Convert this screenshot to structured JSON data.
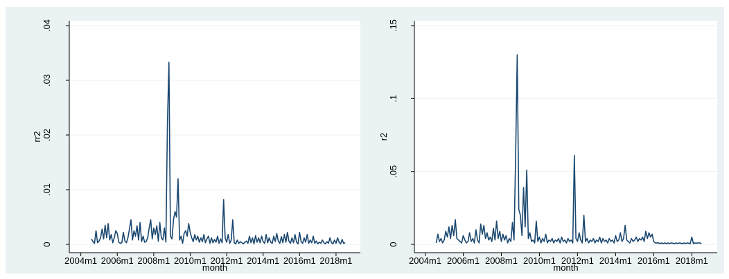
{
  "chart_data": [
    {
      "type": "line",
      "y_label": "rr2",
      "x_label": "month",
      "x": [
        535,
        536,
        537,
        538,
        539,
        540,
        541,
        542,
        543,
        544,
        545,
        546,
        547,
        548,
        549,
        550,
        551,
        552,
        553,
        554,
        555,
        556,
        557,
        558,
        559,
        560,
        561,
        562,
        563,
        564,
        565,
        566,
        567,
        568,
        569,
        570,
        571,
        572,
        573,
        574,
        575,
        576,
        577,
        578,
        579,
        580,
        581,
        582,
        583,
        584,
        585,
        586,
        587,
        588,
        589,
        590,
        591,
        592,
        593,
        594,
        595,
        596,
        597,
        598,
        599,
        600,
        601,
        602,
        603,
        604,
        605,
        606,
        607,
        608,
        609,
        610,
        611,
        612,
        613,
        614,
        615,
        616,
        617,
        618,
        619,
        620,
        621,
        622,
        623,
        624,
        625,
        626,
        627,
        628,
        629,
        630,
        631,
        632,
        633,
        634,
        635,
        636,
        637,
        638,
        639,
        640,
        641,
        642,
        643,
        644,
        645,
        646,
        647,
        648,
        649,
        650,
        651,
        652,
        653,
        654,
        655,
        656,
        657,
        658,
        659,
        660,
        661,
        662,
        663,
        664,
        665,
        666,
        667,
        668,
        669,
        670,
        671,
        672,
        673,
        674,
        675,
        676,
        677,
        678,
        679,
        680,
        681,
        682,
        683,
        684,
        685,
        686,
        687,
        688,
        689,
        690,
        691,
        692,
        693,
        694,
        695,
        696,
        697,
        698,
        699,
        700,
        701,
        702
      ],
      "series": [
        {
          "name": "rr2",
          "color": "#1a476f",
          "values": [
            0.001,
            0.0005,
            0.0002,
            0.0025,
            0.0003,
            0.0006,
            0.0012,
            0.0028,
            0.001,
            0.0035,
            0.0012,
            0.0038,
            0.0008,
            0.0018,
            0.0003,
            0.0012,
            0.0025,
            0.002,
            0.0004,
            0.0002,
            0.0003,
            0.0022,
            0.0006,
            0.0003,
            0.0012,
            0.0028,
            0.0045,
            0.0008,
            0.0025,
            0.0015,
            0.0034,
            0.0008,
            0.004,
            0.0005,
            0.0015,
            0.0004,
            0.0005,
            0.0012,
            0.003,
            0.0045,
            0.001,
            0.003,
            0.0018,
            0.0034,
            0.0006,
            0.004,
            0.0012,
            0.0008,
            0.003,
            0.0004,
            0.022,
            0.0333,
            0.0015,
            0.001,
            0.0045,
            0.006,
            0.005,
            0.012,
            0.0008,
            0.0015,
            0.0002,
            0.002,
            0.0025,
            0.0015,
            0.0038,
            0.0022,
            0.0012,
            0.0005,
            0.0018,
            0.0008,
            0.0015,
            0.0004,
            0.0012,
            0.0005,
            0.0018,
            0.0003,
            0.001,
            0.0015,
            0.0002,
            0.0012,
            0.0003,
            0.0009,
            0.0004,
            0.0015,
            0.0002,
            0.001,
            0.0003,
            0.0082,
            0.0012,
            0.0004,
            0.0018,
            0.0002,
            0.0008,
            0.0045,
            0.0003,
            0.0001,
            0.0008,
            0.0002,
            0.0005,
            0.0003,
            0.0001,
            0.0004,
            0.0006,
            0.0002,
            0.0015,
            0.0003,
            0.0012,
            0.0001,
            0.0016,
            0.0004,
            0.0012,
            0.0003,
            0.0015,
            0.0005,
            0.0002,
            0.0018,
            0.0003,
            0.0012,
            0.0004,
            0.0002,
            0.0015,
            0.0005,
            0.002,
            0.0006,
            0.0002,
            0.0014,
            0.0003,
            0.0018,
            0.0004,
            0.0022,
            0.0006,
            0.0002,
            0.0012,
            0.0003,
            0.0018,
            0.0004,
            0.0001,
            0.0022,
            0.0005,
            0.0002,
            0.0012,
            0.0004,
            0.0018,
            0.0002,
            0.0008,
            0.0003,
            0.0015,
            0.0002,
            0.0006,
            0.0001,
            0.0004,
            0.0002,
            0.0008,
            0.0003,
            0.0001,
            0.0005,
            0.0002,
            0.0012,
            0.0003,
            0.0001,
            0.0008,
            0.0002,
            0.0012,
            0.0004,
            0.0001,
            0.0009,
            0.0002,
            0.0003
          ]
        }
      ],
      "xlim": [
        509,
        712
      ],
      "ylim": [
        0,
        0.04
      ],
      "xticks": [
        {
          "value": 528,
          "label": "2004m1"
        },
        {
          "value": 552,
          "label": "2006m1"
        },
        {
          "value": 576,
          "label": "2008m1"
        },
        {
          "value": 600,
          "label": "2010m1"
        },
        {
          "value": 624,
          "label": "2012m1"
        },
        {
          "value": 648,
          "label": "2014m1"
        },
        {
          "value": 672,
          "label": "2016m1"
        },
        {
          "value": 696,
          "label": "2018m1"
        }
      ],
      "yticks": [
        0,
        {
          "value": 0.01,
          "label": ".01"
        },
        {
          "value": 0.02,
          "label": ".02"
        },
        {
          "value": 0.03,
          "label": ".03"
        },
        {
          "value": 0.04,
          "label": ".04"
        }
      ],
      "grid": true
    },
    {
      "type": "line",
      "y_label": "r2",
      "x_label": "month",
      "x": [
        535,
        536,
        537,
        538,
        539,
        540,
        541,
        542,
        543,
        544,
        545,
        546,
        547,
        548,
        549,
        550,
        551,
        552,
        553,
        554,
        555,
        556,
        557,
        558,
        559,
        560,
        561,
        562,
        563,
        564,
        565,
        566,
        567,
        568,
        569,
        570,
        571,
        572,
        573,
        574,
        575,
        576,
        577,
        578,
        579,
        580,
        581,
        582,
        583,
        584,
        585,
        586,
        587,
        588,
        589,
        590,
        591,
        592,
        593,
        594,
        595,
        596,
        597,
        598,
        599,
        600,
        601,
        602,
        603,
        604,
        605,
        606,
        607,
        608,
        609,
        610,
        611,
        612,
        613,
        614,
        615,
        616,
        617,
        618,
        619,
        620,
        621,
        622,
        623,
        624,
        625,
        626,
        627,
        628,
        629,
        630,
        631,
        632,
        633,
        634,
        635,
        636,
        637,
        638,
        639,
        640,
        641,
        642,
        643,
        644,
        645,
        646,
        647,
        648,
        649,
        650,
        651,
        652,
        653,
        654,
        655,
        656,
        657,
        658,
        659,
        660,
        661,
        662,
        663,
        664,
        665,
        666,
        667,
        668,
        669,
        670,
        671,
        672,
        673,
        674,
        675,
        676,
        677,
        678,
        679,
        680,
        681,
        682,
        683,
        684,
        685,
        686,
        687,
        688,
        689,
        690,
        691,
        692,
        693,
        694,
        695,
        696,
        697,
        698,
        699,
        700,
        701,
        702
      ],
      "series": [
        {
          "name": "r2",
          "color": "#1a476f",
          "values": [
            0.001,
            0.007,
            0.002,
            0.004,
            0.001,
            0.003,
            0.009,
            0.005,
            0.012,
            0.004,
            0.013,
            0.006,
            0.017,
            0.004,
            0.003,
            0.002,
            0.001,
            0.006,
            0.003,
            0.001,
            0.002,
            0.008,
            0.002,
            0.004,
            0.001,
            0.01,
            0.003,
            0.001,
            0.014,
            0.007,
            0.013,
            0.004,
            0.008,
            0.003,
            0.005,
            0.002,
            0.011,
            0.003,
            0.016,
            0.004,
            0.009,
            0.002,
            0.007,
            0.003,
            0.006,
            0.001,
            0.004,
            0.002,
            0.015,
            0.003,
            0.06,
            0.13,
            0.024,
            0.02,
            0.006,
            0.039,
            0.012,
            0.051,
            0.004,
            0.008,
            0.002,
            0.003,
            0.001,
            0.016,
            0.002,
            0.005,
            0.001,
            0.004,
            0.002,
            0.007,
            0.001,
            0.003,
            0.002,
            0.004,
            0.001,
            0.003,
            0.002,
            0.004,
            0.001,
            0.005,
            0.002,
            0.003,
            0.001,
            0.004,
            0.002,
            0.003,
            0.001,
            0.061,
            0.004,
            0.002,
            0.008,
            0.003,
            0.001,
            0.02,
            0.002,
            0.004,
            0.001,
            0.003,
            0.002,
            0.004,
            0.001,
            0.003,
            0.002,
            0.005,
            0.001,
            0.004,
            0.002,
            0.003,
            0.001,
            0.004,
            0.002,
            0.003,
            0.001,
            0.006,
            0.002,
            0.003,
            0.008,
            0.002,
            0.004,
            0.013,
            0.003,
            0.002,
            0.001,
            0.004,
            0.002,
            0.003,
            0.005,
            0.002,
            0.004,
            0.003,
            0.005,
            0.002,
            0.009,
            0.004,
            0.008,
            0.005,
            0.007,
            0.002,
            0.001,
            0.001,
            0.001,
            0.0005,
            0.001,
            0.0005,
            0.001,
            0.0005,
            0.001,
            0.0005,
            0.001,
            0.0008,
            0.0005,
            0.001,
            0.0005,
            0.001,
            0.0008,
            0.0005,
            0.001,
            0.0005,
            0.001,
            0.0008,
            0.0005,
            0.005,
            0.0005,
            0.001,
            0.0008,
            0.001,
            0.001,
            0.0005
          ]
        }
      ],
      "xlim": [
        509,
        712
      ],
      "ylim": [
        0,
        0.15
      ],
      "xticks": [
        {
          "value": 528,
          "label": "2004m1"
        },
        {
          "value": 552,
          "label": "2006m1"
        },
        {
          "value": 576,
          "label": "2008m1"
        },
        {
          "value": 600,
          "label": "2010m1"
        },
        {
          "value": 624,
          "label": "2012m1"
        },
        {
          "value": 648,
          "label": "2014m1"
        },
        {
          "value": 672,
          "label": "2016m1"
        },
        {
          "value": 696,
          "label": "2018m1"
        }
      ],
      "yticks": [
        0,
        {
          "value": 0.05,
          "label": ".05"
        },
        {
          "value": 0.1,
          "label": ".1"
        },
        {
          "value": 0.15,
          "label": ".15"
        }
      ],
      "grid": true
    }
  ]
}
